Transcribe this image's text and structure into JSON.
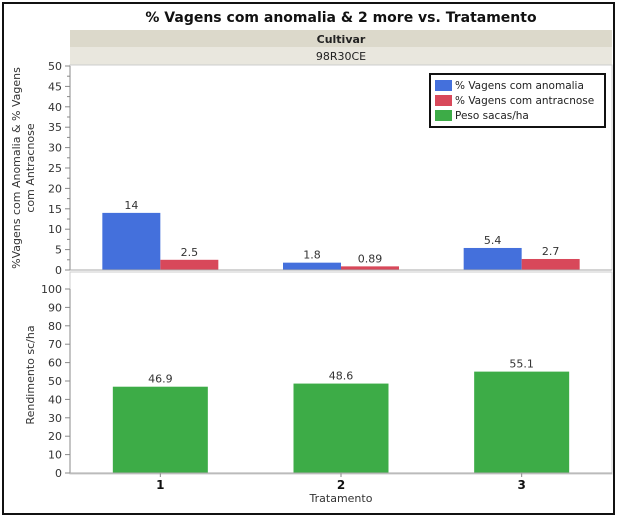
{
  "chart_data": [
    {
      "type": "bar",
      "title": "% Vagens com anomalia & 2 more vs. Tratamento",
      "group_header": "Cultivar",
      "group_value": "98R30CE",
      "categories": [
        "1",
        "2",
        "3"
      ],
      "xlabel": "Tratamento",
      "ylabel": "%Vagens com Anomalia & % Vagens com Antracnose",
      "ylim": [
        0,
        50
      ],
      "yticks": [
        0,
        5,
        10,
        15,
        20,
        25,
        30,
        35,
        40,
        45,
        50
      ],
      "series": [
        {
          "name": "% Vagens com anomalia",
          "color": "#4470dc",
          "values": [
            14,
            1.8,
            5.4
          ],
          "labels": [
            "14",
            "1.8",
            "5.4"
          ]
        },
        {
          "name": "% Vagens com antracnose",
          "color": "#d8485a",
          "values": [
            2.5,
            0.89,
            2.7
          ],
          "labels": [
            "2.5",
            "0.89",
            "2.7"
          ]
        }
      ],
      "legend_position": "top-right"
    },
    {
      "type": "bar",
      "categories": [
        "1",
        "2",
        "3"
      ],
      "ylabel": "Rendimento sc/ha",
      "ylim": [
        0,
        100
      ],
      "yticks": [
        0,
        10,
        20,
        30,
        40,
        50,
        60,
        70,
        80,
        90,
        100
      ],
      "series": [
        {
          "name": "Peso sacas/ha",
          "color": "#3dac47",
          "values": [
            46.9,
            48.6,
            55.1
          ],
          "labels": [
            "46.9",
            "48.6",
            "55.1"
          ]
        }
      ]
    }
  ],
  "legend": [
    "% Vagens com anomalia",
    "% Vagens com antracnose",
    "Peso sacas/ha"
  ]
}
